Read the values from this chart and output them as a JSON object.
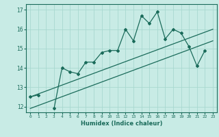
{
  "title": "",
  "xlabel": "Humidex (Indice chaleur)",
  "ylabel": "",
  "background_color": "#c8ebe5",
  "line_color": "#1a6b5a",
  "grid_color": "#a8d8d0",
  "x_data": [
    0,
    1,
    2,
    3,
    4,
    5,
    6,
    7,
    8,
    9,
    10,
    11,
    12,
    13,
    14,
    15,
    16,
    17,
    18,
    19,
    20,
    21,
    22,
    23
  ],
  "y_main": [
    12.5,
    12.6,
    null,
    11.9,
    14.0,
    13.8,
    13.7,
    14.3,
    14.3,
    14.8,
    14.9,
    14.9,
    16.0,
    15.4,
    16.7,
    16.3,
    16.9,
    15.5,
    16.0,
    15.8,
    15.1,
    14.1,
    14.9,
    null
  ],
  "y_line1_x": [
    0,
    23
  ],
  "y_line1_y": [
    12.5,
    16.0
  ],
  "y_line2_x": [
    0,
    23
  ],
  "y_line2_y": [
    11.9,
    15.4
  ],
  "ylim": [
    11.7,
    17.3
  ],
  "xlim": [
    -0.5,
    23.5
  ],
  "yticks": [
    12,
    13,
    14,
    15,
    16,
    17
  ],
  "xticks": [
    0,
    1,
    2,
    3,
    4,
    5,
    6,
    7,
    8,
    9,
    10,
    11,
    12,
    13,
    14,
    15,
    16,
    17,
    18,
    19,
    20,
    21,
    22,
    23
  ]
}
